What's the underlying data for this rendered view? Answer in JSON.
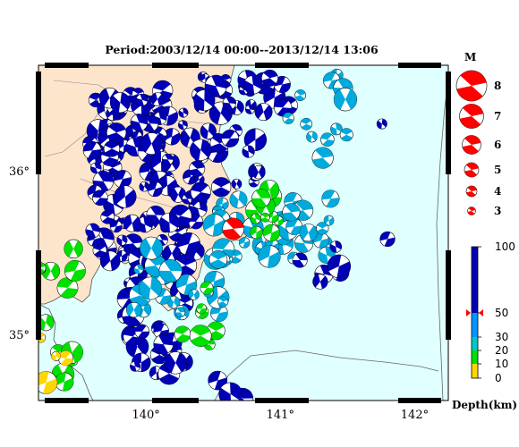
{
  "title": "Period:2003/12/14 00:00--2013/12/14 13:06",
  "lon_ticks": [
    {
      "v": 140,
      "label": "140°"
    },
    {
      "v": 141,
      "label": "141°"
    },
    {
      "v": 142,
      "label": "142°"
    }
  ],
  "lat_ticks": [
    {
      "v": 36,
      "label": "36°"
    },
    {
      "v": 35,
      "label": "35°"
    }
  ],
  "map_extent": {
    "lon": [
      139.2,
      142.25
    ],
    "lat": [
      34.6,
      36.65
    ]
  },
  "colors": {
    "sea": "#e0ffff",
    "land": "#fde5cc",
    "frame": "#000000",
    "highlight": "#ff0000"
  },
  "magnitude_legend": {
    "title": "M",
    "items": [
      "8",
      "7",
      "6",
      "5",
      "4",
      "3"
    ]
  },
  "depth_scale": {
    "label": "Depth(km)",
    "ticks": [
      "100",
      "50",
      "30",
      "20",
      "10",
      "0"
    ],
    "bands": [
      {
        "from": 0,
        "to": 10,
        "color": "#ffd700"
      },
      {
        "from": 10,
        "to": 20,
        "color": "#00e000"
      },
      {
        "from": 20,
        "to": 30,
        "color": "#00c8c8"
      },
      {
        "from": 30,
        "to": 50,
        "color": "#0096ff"
      },
      {
        "from": 50,
        "to": 100,
        "color": "#0000b4"
      }
    ],
    "marker_depth": 50
  },
  "main_event": {
    "lon": 140.65,
    "lat": 35.65,
    "depth": "shallow",
    "color": "#ff0000"
  },
  "clusters": [
    {
      "lon": [
        139.55,
        140.35
      ],
      "lat": [
        35.95,
        36.5
      ],
      "n": 70,
      "c": "blue"
    },
    {
      "lon": [
        139.6,
        140.4
      ],
      "lat": [
        35.45,
        35.95
      ],
      "n": 60,
      "c": "blue"
    },
    {
      "lon": [
        139.8,
        140.3
      ],
      "lat": [
        34.75,
        35.45
      ],
      "n": 40,
      "c": "blue"
    },
    {
      "lon": [
        140.4,
        141.1
      ],
      "lat": [
        36.35,
        36.6
      ],
      "n": 25,
      "c": "blue"
    },
    {
      "lon": [
        140.3,
        140.85
      ],
      "lat": [
        35.8,
        36.3
      ],
      "n": 20,
      "c": "blue"
    },
    {
      "lon": [
        140.5,
        141.4
      ],
      "lat": [
        35.45,
        35.85
      ],
      "n": 40,
      "c": "cyan"
    },
    {
      "lon": [
        140.8,
        141.0
      ],
      "lat": [
        35.6,
        35.9
      ],
      "n": 12,
      "c": "green"
    },
    {
      "lon": [
        139.85,
        140.6
      ],
      "lat": [
        35.1,
        35.55
      ],
      "n": 25,
      "c": "cyan"
    },
    {
      "lon": [
        140.2,
        140.6
      ],
      "lat": [
        34.9,
        35.3
      ],
      "n": 8,
      "c": "green"
    },
    {
      "lon": [
        139.2,
        139.5
      ],
      "lat": [
        34.7,
        35.6
      ],
      "n": 14,
      "c": "green"
    },
    {
      "lon": [
        139.2,
        139.5
      ],
      "lat": [
        34.7,
        35.0
      ],
      "n": 4,
      "c": "yellow"
    },
    {
      "lon": [
        141.0,
        141.5
      ],
      "lat": [
        36.0,
        36.6
      ],
      "n": 12,
      "c": "cyan"
    },
    {
      "lon": [
        141.1,
        141.6
      ],
      "lat": [
        35.3,
        35.55
      ],
      "n": 6,
      "c": "blue"
    },
    {
      "lon": [
        141.75,
        141.8
      ],
      "lat": [
        36.25,
        36.3
      ],
      "n": 1,
      "c": "blue"
    },
    {
      "lon": [
        141.75,
        141.8
      ],
      "lat": [
        35.58,
        35.62
      ],
      "n": 1,
      "c": "blue"
    },
    {
      "lon": [
        140.5,
        140.8
      ],
      "lat": [
        34.6,
        34.8
      ],
      "n": 3,
      "c": "blue"
    }
  ]
}
